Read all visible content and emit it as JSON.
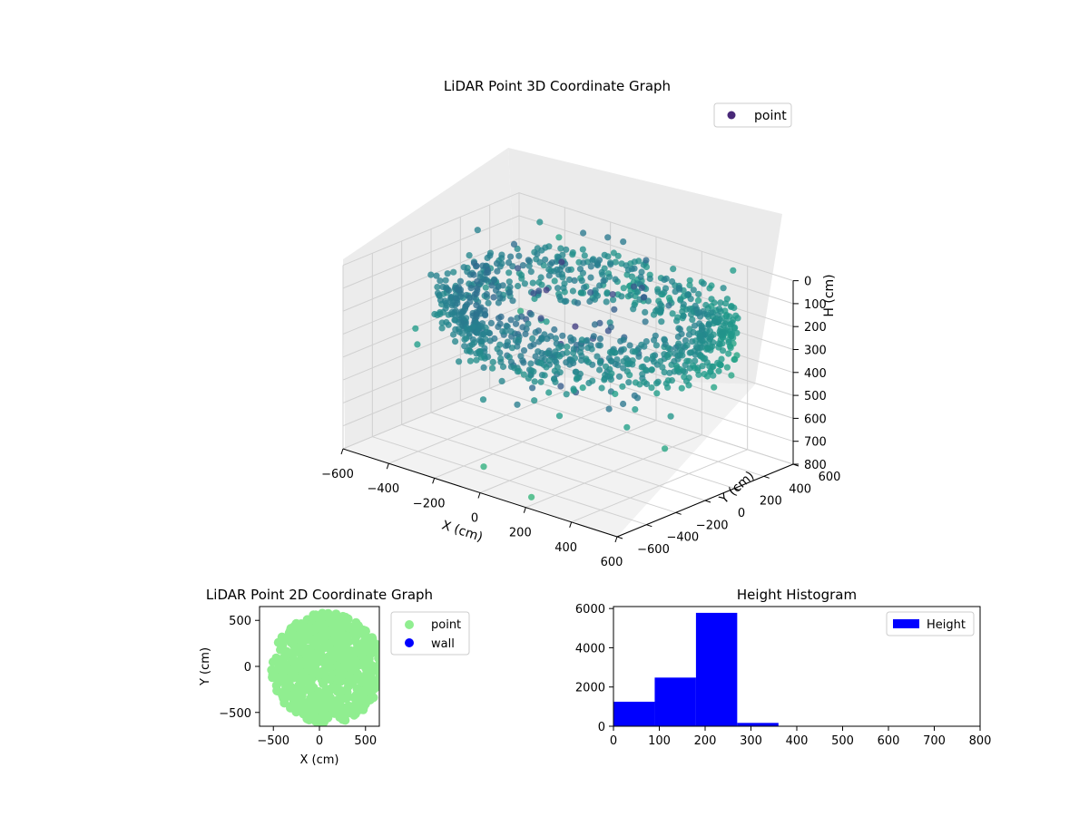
{
  "chart_data": [
    {
      "type": "scatter",
      "title": "LiDAR Point 3D Coordinate Graph",
      "xlabel": "X (cm)",
      "ylabel": "Y (cm)",
      "zlabel": "H (cm)",
      "xlim": [
        -600,
        600
      ],
      "ylim": [
        -600,
        600
      ],
      "zlim": [
        0,
        800
      ],
      "z_inverted": true,
      "xticks": [
        "−600",
        "−400",
        "−200",
        "0",
        "200",
        "400",
        "600"
      ],
      "yticks": [
        "−600",
        "−400",
        "−200",
        "0",
        "200",
        "400",
        "600"
      ],
      "zticks": [
        "0",
        "100",
        "200",
        "300",
        "400",
        "500",
        "600",
        "700",
        "800"
      ],
      "legend": [
        "point"
      ],
      "legend_position": "top-right",
      "colormap": "viridis",
      "point_color": "#482878",
      "ring_center": [
        50,
        50
      ],
      "ring_radius": 540,
      "ring_height_range": [
        100,
        300
      ],
      "outliers": [
        {
          "x": -10,
          "y": -560,
          "h": 700
        },
        {
          "x": 180,
          "y": -530,
          "h": 780
        },
        {
          "x": 450,
          "y": -300,
          "h": 450
        },
        {
          "x": 520,
          "y": -150,
          "h": 560
        },
        {
          "x": -400,
          "y": 560,
          "h": 120
        },
        {
          "x": 350,
          "y": 580,
          "h": 30
        }
      ]
    },
    {
      "type": "scatter",
      "title": "LiDAR Point 2D Coordinate Graph",
      "xlabel": "X (cm)",
      "ylabel": "Y (cm)",
      "xlim": [
        -650,
        650
      ],
      "ylim": [
        -650,
        650
      ],
      "xticks": [
        "−500",
        "0",
        "500"
      ],
      "yticks": [
        "−500",
        "0",
        "500"
      ],
      "series": [
        {
          "name": "point",
          "color": "#90ee90"
        },
        {
          "name": "wall",
          "color": "#0000ff"
        }
      ],
      "legend_position": "right"
    },
    {
      "type": "bar",
      "title": "Height Histogram",
      "xlim": [
        0,
        800
      ],
      "ylim": [
        0,
        6100
      ],
      "xticks": [
        "0",
        "100",
        "200",
        "300",
        "400",
        "500",
        "600",
        "700",
        "800"
      ],
      "yticks": [
        "0",
        "2000",
        "4000",
        "6000"
      ],
      "bin_edges": [
        0,
        90,
        180,
        270,
        360,
        450,
        540,
        630,
        720,
        810
      ],
      "values": [
        1250,
        2480,
        5780,
        170,
        0,
        0,
        0,
        0,
        0
      ],
      "series": [
        {
          "name": "Height",
          "color": "#0000ff"
        }
      ],
      "legend_position": "top-right"
    }
  ]
}
